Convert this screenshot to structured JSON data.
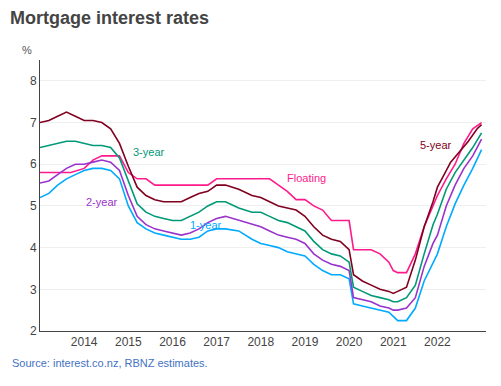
{
  "chart_data": {
    "type": "line",
    "title": "Mortgage interest rates",
    "ylabel": "%",
    "source": "Source: interest.co.nz, RBNZ estimates.",
    "xlim": [
      2013.0,
      2023.1
    ],
    "xticks": [
      2014,
      2015,
      2016,
      2017,
      2018,
      2019,
      2020,
      2021,
      2022
    ],
    "ylim": [
      2,
      8.5
    ],
    "yticks": [
      2,
      3,
      4,
      5,
      6,
      7,
      8
    ],
    "grid": "y",
    "series": [
      {
        "name": "Floating",
        "color": "#ff1a8c",
        "x": [
          2013.0,
          2013.1,
          2013.3,
          2013.5,
          2013.7,
          2014.0,
          2014.1,
          2014.2,
          2014.4,
          2014.6,
          2014.8,
          2015.0,
          2015.2,
          2015.4,
          2015.6,
          2015.8,
          2016.0,
          2016.2,
          2016.4,
          2016.6,
          2016.8,
          2017.0,
          2017.2,
          2017.5,
          2017.8,
          2018.0,
          2018.2,
          2018.4,
          2018.6,
          2018.8,
          2019.0,
          2019.2,
          2019.4,
          2019.6,
          2019.8,
          2020.0,
          2020.1,
          2020.3,
          2020.5,
          2020.7,
          2020.9,
          2021.0,
          2021.1,
          2021.3,
          2021.5,
          2021.7,
          2021.9,
          2022.0,
          2022.2,
          2022.4,
          2022.6,
          2022.8,
          2023.0
        ],
        "values": [
          5.8,
          5.8,
          5.8,
          5.8,
          5.8,
          5.9,
          6.0,
          6.1,
          6.2,
          6.2,
          6.2,
          5.8,
          5.65,
          5.65,
          5.5,
          5.5,
          5.5,
          5.5,
          5.5,
          5.5,
          5.5,
          5.65,
          5.65,
          5.65,
          5.65,
          5.65,
          5.65,
          5.5,
          5.35,
          5.15,
          5.15,
          5.0,
          4.9,
          4.65,
          4.65,
          4.65,
          3.95,
          3.95,
          3.95,
          3.85,
          3.65,
          3.45,
          3.4,
          3.4,
          3.85,
          4.5,
          5.0,
          5.25,
          5.65,
          6.0,
          6.5,
          6.85,
          7.0
        ]
      },
      {
        "name": "1-year",
        "color": "#00aaff",
        "x": [
          2013.0,
          2013.2,
          2013.4,
          2013.6,
          2013.8,
          2014.0,
          2014.2,
          2014.4,
          2014.6,
          2014.8,
          2015.0,
          2015.2,
          2015.4,
          2015.6,
          2015.8,
          2016.0,
          2016.2,
          2016.4,
          2016.6,
          2016.8,
          2017.0,
          2017.2,
          2017.5,
          2017.8,
          2018.0,
          2018.2,
          2018.4,
          2018.6,
          2018.8,
          2019.0,
          2019.2,
          2019.4,
          2019.6,
          2019.8,
          2020.0,
          2020.1,
          2020.3,
          2020.5,
          2020.7,
          2020.9,
          2021.0,
          2021.1,
          2021.3,
          2021.5,
          2021.7,
          2021.9,
          2022.0,
          2022.2,
          2022.4,
          2022.6,
          2022.8,
          2023.0
        ],
        "values": [
          5.2,
          5.3,
          5.5,
          5.65,
          5.75,
          5.85,
          5.9,
          5.9,
          5.85,
          5.65,
          5.0,
          4.6,
          4.45,
          4.35,
          4.3,
          4.25,
          4.2,
          4.2,
          4.25,
          4.4,
          4.45,
          4.45,
          4.4,
          4.2,
          4.1,
          4.05,
          4.0,
          3.9,
          3.85,
          3.8,
          3.6,
          3.45,
          3.35,
          3.35,
          3.25,
          2.65,
          2.6,
          2.55,
          2.5,
          2.45,
          2.35,
          2.25,
          2.25,
          2.55,
          3.2,
          3.65,
          3.85,
          4.5,
          5.05,
          5.5,
          5.9,
          6.35
        ]
      },
      {
        "name": "2-year",
        "color": "#9933cc",
        "x": [
          2013.0,
          2013.2,
          2013.4,
          2013.6,
          2013.8,
          2014.0,
          2014.2,
          2014.4,
          2014.6,
          2014.8,
          2015.0,
          2015.2,
          2015.4,
          2015.6,
          2015.8,
          2016.0,
          2016.2,
          2016.4,
          2016.6,
          2016.8,
          2017.0,
          2017.2,
          2017.5,
          2017.8,
          2018.0,
          2018.2,
          2018.4,
          2018.6,
          2018.8,
          2019.0,
          2019.2,
          2019.4,
          2019.6,
          2019.8,
          2020.0,
          2020.1,
          2020.3,
          2020.5,
          2020.7,
          2020.9,
          2021.0,
          2021.1,
          2021.3,
          2021.5,
          2021.7,
          2021.9,
          2022.0,
          2022.2,
          2022.4,
          2022.6,
          2022.8,
          2023.0
        ],
        "values": [
          5.55,
          5.6,
          5.75,
          5.9,
          6.0,
          6.0,
          6.05,
          6.1,
          6.05,
          5.85,
          5.25,
          4.75,
          4.55,
          4.45,
          4.4,
          4.35,
          4.3,
          4.35,
          4.45,
          4.6,
          4.7,
          4.75,
          4.65,
          4.55,
          4.5,
          4.4,
          4.3,
          4.25,
          4.2,
          4.1,
          3.85,
          3.7,
          3.6,
          3.55,
          3.45,
          2.8,
          2.75,
          2.7,
          2.6,
          2.55,
          2.5,
          2.5,
          2.55,
          2.8,
          3.55,
          4.1,
          4.3,
          5.0,
          5.5,
          5.9,
          6.2,
          6.6
        ]
      },
      {
        "name": "3-year",
        "color": "#009977",
        "x": [
          2013.0,
          2013.2,
          2013.4,
          2013.6,
          2013.8,
          2014.0,
          2014.2,
          2014.4,
          2014.6,
          2014.8,
          2015.0,
          2015.2,
          2015.4,
          2015.6,
          2015.8,
          2016.0,
          2016.2,
          2016.4,
          2016.6,
          2016.8,
          2017.0,
          2017.2,
          2017.5,
          2017.8,
          2018.0,
          2018.2,
          2018.4,
          2018.6,
          2018.8,
          2019.0,
          2019.2,
          2019.4,
          2019.6,
          2019.8,
          2020.0,
          2020.1,
          2020.3,
          2020.5,
          2020.7,
          2020.9,
          2021.0,
          2021.1,
          2021.3,
          2021.5,
          2021.7,
          2021.9,
          2022.0,
          2022.2,
          2022.4,
          2022.6,
          2022.8,
          2023.0
        ],
        "values": [
          6.4,
          6.45,
          6.5,
          6.55,
          6.55,
          6.5,
          6.45,
          6.45,
          6.4,
          6.15,
          5.6,
          5.05,
          4.85,
          4.75,
          4.7,
          4.65,
          4.65,
          4.75,
          4.85,
          5.0,
          5.1,
          5.1,
          4.95,
          4.85,
          4.85,
          4.75,
          4.65,
          4.6,
          4.5,
          4.4,
          4.15,
          3.95,
          3.85,
          3.8,
          3.65,
          3.05,
          2.95,
          2.85,
          2.8,
          2.75,
          2.7,
          2.7,
          2.8,
          3.1,
          3.85,
          4.55,
          4.8,
          5.4,
          5.8,
          6.1,
          6.4,
          6.75
        ]
      },
      {
        "name": "5-year",
        "color": "#800020",
        "x": [
          2013.0,
          2013.2,
          2013.4,
          2013.6,
          2013.8,
          2014.0,
          2014.2,
          2014.4,
          2014.6,
          2014.8,
          2015.0,
          2015.2,
          2015.4,
          2015.6,
          2015.8,
          2016.0,
          2016.2,
          2016.4,
          2016.6,
          2016.8,
          2017.0,
          2017.2,
          2017.5,
          2017.8,
          2018.0,
          2018.2,
          2018.4,
          2018.6,
          2018.8,
          2019.0,
          2019.2,
          2019.4,
          2019.6,
          2019.8,
          2020.0,
          2020.1,
          2020.3,
          2020.5,
          2020.7,
          2020.9,
          2021.0,
          2021.1,
          2021.3,
          2021.5,
          2021.7,
          2021.9,
          2022.0,
          2022.1,
          2022.3,
          2022.5,
          2022.7,
          2022.9,
          2023.0
        ],
        "values": [
          7.0,
          7.05,
          7.15,
          7.25,
          7.15,
          7.05,
          7.05,
          7.0,
          6.85,
          6.5,
          5.95,
          5.45,
          5.25,
          5.15,
          5.1,
          5.1,
          5.1,
          5.2,
          5.3,
          5.35,
          5.5,
          5.5,
          5.4,
          5.25,
          5.2,
          5.1,
          5.0,
          4.95,
          4.9,
          4.75,
          4.5,
          4.3,
          4.2,
          4.15,
          3.95,
          3.35,
          3.2,
          3.1,
          3.0,
          2.95,
          2.9,
          2.95,
          3.05,
          3.7,
          4.5,
          5.1,
          5.45,
          5.65,
          6.05,
          6.3,
          6.55,
          6.85,
          6.95
        ]
      }
    ],
    "annotations": [
      {
        "x": 2015.05,
        "y": 6.3,
        "text": "3-year",
        "color": "#009977"
      },
      {
        "x": 2014.0,
        "y": 5.1,
        "text": "2-year",
        "color": "#9933cc"
      },
      {
        "x": 2016.35,
        "y": 4.55,
        "text": "1-year",
        "color": "#00aaff"
      },
      {
        "x": 2018.55,
        "y": 5.68,
        "text": "Floating",
        "color": "#ff1a8c"
      },
      {
        "x": 2021.55,
        "y": 6.45,
        "text": "5-year",
        "color": "#800020"
      }
    ]
  }
}
